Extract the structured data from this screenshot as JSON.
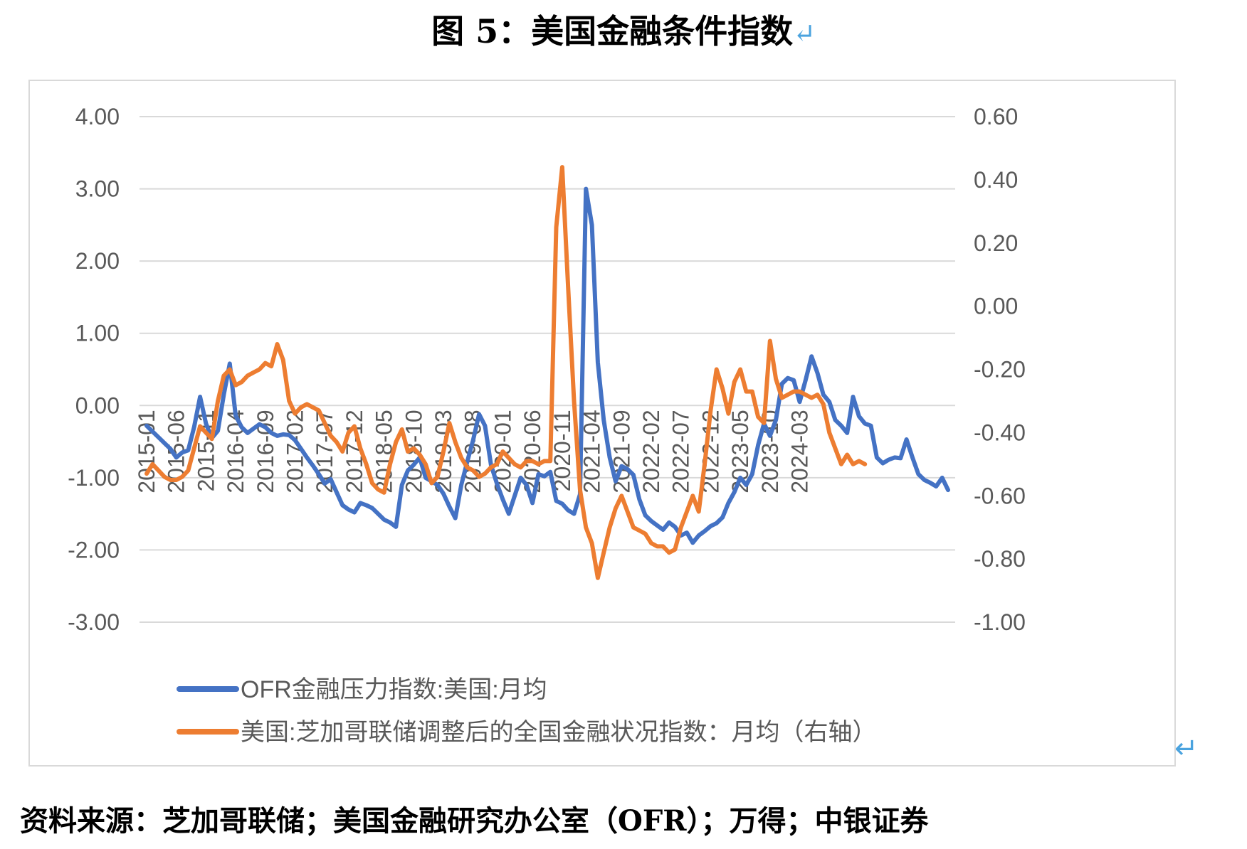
{
  "title": "图 5：美国金融条件指数",
  "return_mark": "↵",
  "source": "资料来源：芝加哥联储；美国金融研究办公室（OFR）；万得；中银证券",
  "chart_data": {
    "type": "line",
    "left_axis": {
      "ylim": [
        -3,
        4
      ],
      "ticks": [
        "4.00",
        "3.00",
        "2.00",
        "1.00",
        "0.00",
        "-1.00",
        "-2.00",
        "-3.00"
      ]
    },
    "right_axis": {
      "ylim": [
        -1,
        0.6
      ],
      "ticks": [
        "0.60",
        "0.40",
        "0.20",
        "0.00",
        "-0.20",
        "-0.40",
        "-0.60",
        "-0.80",
        "-1.00"
      ]
    },
    "x_ticks": [
      "2015-01",
      "2015-06",
      "2015-11",
      "2016-04",
      "2016-09",
      "2017-02",
      "2017-07",
      "2017-12",
      "2018-05",
      "2018-10",
      "2019-03",
      "2019-08",
      "2020-01",
      "2020-06",
      "2020-11",
      "2021-04",
      "2021-09",
      "2022-02",
      "2022-07",
      "2022-12",
      "2023-05",
      "2023-10",
      "2024-03"
    ],
    "x_start": "2015-01",
    "grid": true,
    "legend_position": "bottom-left",
    "series": [
      {
        "name": "OFR金融压力指数:美国:月均",
        "axis": "left",
        "color": "#4472c4",
        "values": [
          -0.28,
          -0.36,
          -0.44,
          -0.52,
          -0.6,
          -0.72,
          -0.65,
          -0.62,
          -0.3,
          0.12,
          -0.25,
          -0.45,
          -0.35,
          0.15,
          0.58,
          -0.14,
          -0.3,
          -0.38,
          -0.32,
          -0.26,
          -0.3,
          -0.38,
          -0.42,
          -0.4,
          -0.41,
          -0.48,
          -0.6,
          -0.72,
          -0.83,
          -0.95,
          -1.08,
          -1.02,
          -1.2,
          -1.38,
          -1.44,
          -1.48,
          -1.35,
          -1.38,
          -1.42,
          -1.5,
          -1.58,
          -1.62,
          -1.68,
          -1.1,
          -0.9,
          -0.82,
          -0.72,
          -1.0,
          -1.05,
          -1.1,
          -1.22,
          -1.4,
          -1.56,
          -1.1,
          -0.78,
          -0.48,
          -0.12,
          -0.28,
          -0.82,
          -1.08,
          -1.3,
          -1.5,
          -1.25,
          -1.0,
          -1.1,
          -1.35,
          -0.95,
          -0.98,
          -0.92,
          -1.32,
          -1.36,
          -1.45,
          -1.5,
          -1.23,
          3.0,
          2.5,
          0.6,
          -0.2,
          -0.72,
          -1.05,
          -0.84,
          -0.88,
          -0.96,
          -1.3,
          -1.52,
          -1.6,
          -1.66,
          -1.72,
          -1.62,
          -1.68,
          -1.8,
          -1.76,
          -1.9,
          -1.8,
          -1.74,
          -1.67,
          -1.63,
          -1.55,
          -1.35,
          -1.2,
          -1.0,
          -1.1,
          -0.95,
          -0.55,
          -0.25,
          -0.42,
          -0.2,
          0.3,
          0.38,
          0.35,
          0.05,
          0.35,
          0.68,
          0.45,
          0.15,
          0.05,
          -0.2,
          -0.28,
          -0.38,
          0.12,
          -0.15,
          -0.25,
          -0.28,
          -0.72,
          -0.8,
          -0.75,
          -0.72,
          -0.73,
          -0.47,
          -0.72,
          -0.95,
          -1.03,
          -1.07,
          -1.12,
          -1.0,
          -1.17
        ]
      },
      {
        "name": "美国:芝加哥联储调整后的全国金融状况指数：月均（右轴）",
        "axis": "right",
        "color": "#ed7d31",
        "values": [
          -0.53,
          -0.5,
          -0.52,
          -0.54,
          -0.55,
          -0.55,
          -0.54,
          -0.52,
          -0.45,
          -0.38,
          -0.4,
          -0.42,
          -0.3,
          -0.22,
          -0.2,
          -0.25,
          -0.24,
          -0.22,
          -0.21,
          -0.2,
          -0.18,
          -0.19,
          -0.12,
          -0.17,
          -0.3,
          -0.34,
          -0.32,
          -0.31,
          -0.32,
          -0.33,
          -0.37,
          -0.41,
          -0.43,
          -0.46,
          -0.4,
          -0.38,
          -0.45,
          -0.5,
          -0.56,
          -0.58,
          -0.59,
          -0.5,
          -0.43,
          -0.39,
          -0.46,
          -0.45,
          -0.47,
          -0.5,
          -0.56,
          -0.54,
          -0.46,
          -0.37,
          -0.43,
          -0.48,
          -0.51,
          -0.52,
          -0.54,
          -0.53,
          -0.51,
          -0.5,
          -0.46,
          -0.48,
          -0.5,
          -0.51,
          -0.49,
          -0.49,
          -0.5,
          -0.49,
          -0.49,
          0.25,
          0.44,
          0.06,
          -0.3,
          -0.58,
          -0.7,
          -0.75,
          -0.86,
          -0.78,
          -0.7,
          -0.64,
          -0.6,
          -0.65,
          -0.7,
          -0.71,
          -0.72,
          -0.75,
          -0.76,
          -0.76,
          -0.78,
          -0.77,
          -0.7,
          -0.65,
          -0.6,
          -0.65,
          -0.5,
          -0.33,
          -0.2,
          -0.26,
          -0.34,
          -0.24,
          -0.2,
          -0.27,
          -0.27,
          -0.35,
          -0.37,
          -0.11,
          -0.23,
          -0.29,
          -0.28,
          -0.27,
          -0.27,
          -0.28,
          -0.29,
          -0.28,
          -0.31,
          -0.4,
          -0.45,
          -0.5,
          -0.47,
          -0.5,
          -0.49,
          -0.5
        ]
      }
    ]
  }
}
